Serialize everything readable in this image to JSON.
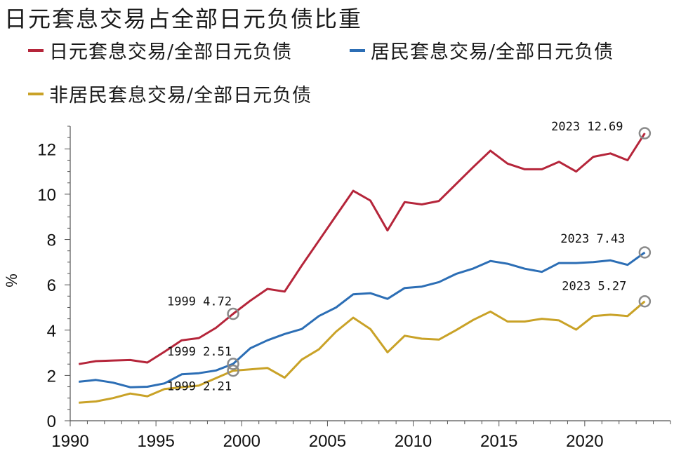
{
  "chart_data": {
    "type": "line",
    "title": "日元套息交易占全部日元负债比重",
    "ylabel": "%",
    "xlabel": "",
    "xlim": [
      1990,
      2025
    ],
    "ylim": [
      0,
      13
    ],
    "x_ticks": [
      1990,
      1995,
      2000,
      2005,
      2010,
      2015,
      2020
    ],
    "y_ticks": [
      0,
      2,
      4,
      6,
      8,
      10,
      12
    ],
    "legend_position": "top",
    "grid": false,
    "x": [
      1990.5,
      1991.5,
      1992.5,
      1993.5,
      1994.5,
      1995.5,
      1996.5,
      1997.5,
      1998.5,
      1999.5,
      2000.5,
      2001.5,
      2002.5,
      2003.5,
      2004.5,
      2005.5,
      2006.5,
      2007.5,
      2008.5,
      2009.5,
      2010.5,
      2011.5,
      2012.5,
      2013.5,
      2014.5,
      2015.5,
      2016.5,
      2017.5,
      2018.5,
      2019.5,
      2020.5,
      2021.5,
      2022.5,
      2023.5
    ],
    "series": [
      {
        "name": "日元套息交易/全部日元负债",
        "color": "#B5253A",
        "values": [
          2.5,
          2.63,
          2.66,
          2.68,
          2.57,
          3.05,
          3.55,
          3.65,
          4.1,
          4.72,
          5.3,
          5.82,
          5.7,
          6.85,
          7.95,
          9.05,
          10.15,
          9.72,
          8.4,
          9.65,
          9.55,
          9.7,
          10.45,
          11.2,
          11.92,
          11.35,
          11.1,
          11.1,
          11.43,
          11.0,
          11.65,
          11.8,
          11.5,
          12.69
        ]
      },
      {
        "name": "居民套息交易/全部日元负债",
        "color": "#2C6EB5",
        "values": [
          1.72,
          1.8,
          1.68,
          1.48,
          1.5,
          1.65,
          2.05,
          2.1,
          2.22,
          2.51,
          3.2,
          3.55,
          3.83,
          4.05,
          4.62,
          5.0,
          5.58,
          5.63,
          5.38,
          5.86,
          5.92,
          6.12,
          6.48,
          6.72,
          7.05,
          6.93,
          6.71,
          6.57,
          6.96,
          6.96,
          7.0,
          7.08,
          6.88,
          7.43
        ]
      },
      {
        "name": "非居民套息交易/全部日元负债",
        "color": "#C9A227",
        "values": [
          0.8,
          0.85,
          1.0,
          1.2,
          1.08,
          1.4,
          1.48,
          1.55,
          1.88,
          2.21,
          2.27,
          2.33,
          1.9,
          2.7,
          3.15,
          3.93,
          4.55,
          4.05,
          3.02,
          3.75,
          3.62,
          3.58,
          4.0,
          4.45,
          4.82,
          4.38,
          4.38,
          4.5,
          4.43,
          4.02,
          4.62,
          4.68,
          4.62,
          5.27
        ]
      }
    ],
    "annotations": [
      {
        "x": 1999.5,
        "y": 4.72,
        "series": 0,
        "label": "1999  4.72"
      },
      {
        "x": 1999.5,
        "y": 2.51,
        "series": 1,
        "label": "1999  2.51"
      },
      {
        "x": 1999.5,
        "y": 2.21,
        "series": 2,
        "label": "1999  2.21"
      },
      {
        "x": 2023.5,
        "y": 12.69,
        "series": 0,
        "label": "2023  12.69"
      },
      {
        "x": 2023.5,
        "y": 7.43,
        "series": 1,
        "label": "2023  7.43"
      },
      {
        "x": 2023.5,
        "y": 5.27,
        "series": 2,
        "label": "2023  5.27"
      }
    ]
  }
}
